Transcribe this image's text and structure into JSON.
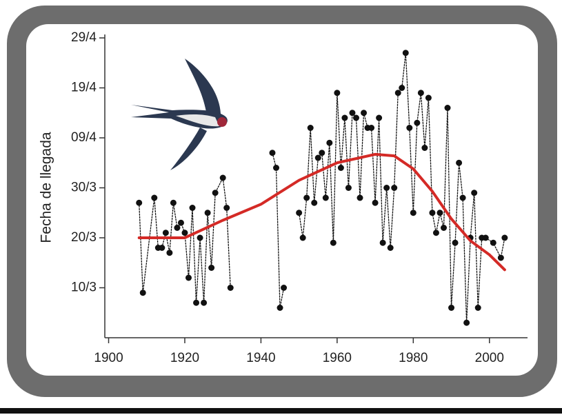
{
  "chart_data": {
    "type": "line",
    "y_label": "Fecha de llegada",
    "xlim": [
      1899,
      2010
    ],
    "xticks": [
      1900,
      1920,
      1940,
      1960,
      1980,
      2000
    ],
    "ylim": [
      59,
      119
    ],
    "yticks": [
      {
        "value": 69,
        "label": "10/3"
      },
      {
        "value": 79,
        "label": "20/3"
      },
      {
        "value": 89,
        "label": "30/3"
      },
      {
        "value": 99,
        "label": "09/4"
      },
      {
        "value": 109,
        "label": "19/4"
      },
      {
        "value": 119,
        "label": "29/4"
      }
    ],
    "series": [
      {
        "color": "#111111",
        "markers": true,
        "dashed": true,
        "x": [
          1908,
          1909,
          1912,
          1913,
          1914,
          1915,
          1916,
          1917,
          1918,
          1919,
          1920,
          1921,
          1922,
          1923,
          1924,
          1925,
          1926,
          1927,
          1928,
          1930,
          1931,
          1932,
          1933,
          1943,
          1944,
          1945,
          1946,
          1947,
          1950,
          1951,
          1952,
          1953,
          1954,
          1955,
          1956,
          1957,
          1958,
          1959,
          1960,
          1961,
          1962,
          1963,
          1964,
          1965,
          1966,
          1967,
          1968,
          1969,
          1970,
          1971,
          1972,
          1973,
          1974,
          1975,
          1976,
          1977,
          1978,
          1979,
          1980,
          1981,
          1982,
          1983,
          1984,
          1985,
          1986,
          1987,
          1988,
          1989,
          1990,
          1991,
          1992,
          1993,
          1994,
          1995,
          1996,
          1997,
          1998,
          1999,
          2001,
          2003,
          2004
        ],
        "values": [
          86,
          68,
          87,
          77,
          77,
          80,
          76,
          86,
          81,
          82,
          80,
          71,
          85,
          66,
          79,
          66,
          84,
          73,
          88,
          91,
          85,
          69,
          null,
          96,
          93,
          65,
          69,
          null,
          84,
          79,
          87,
          101,
          86,
          95,
          96,
          87,
          98,
          78,
          108,
          93,
          103,
          89,
          104,
          103,
          87,
          104,
          101,
          101,
          86,
          103,
          78,
          89,
          77,
          89,
          108,
          109,
          116,
          101,
          84,
          102,
          108,
          97,
          107,
          84,
          80,
          84,
          81,
          105,
          65,
          78,
          94,
          87,
          62,
          79,
          88,
          65,
          79,
          79,
          78,
          75,
          79
        ]
      },
      {
        "color": "#d42a26",
        "markers": false,
        "dashed": false,
        "x": [
          1908,
          1920,
          1930,
          1940,
          1950,
          1960,
          1970,
          1975,
          1980,
          1985,
          1990,
          1995,
          2000,
          2004
        ],
        "values": [
          79,
          79,
          82.5,
          85.7,
          90.5,
          94,
          95.7,
          95.4,
          92.8,
          88.3,
          82.8,
          78.4,
          75.6,
          72.6
        ]
      }
    ]
  }
}
